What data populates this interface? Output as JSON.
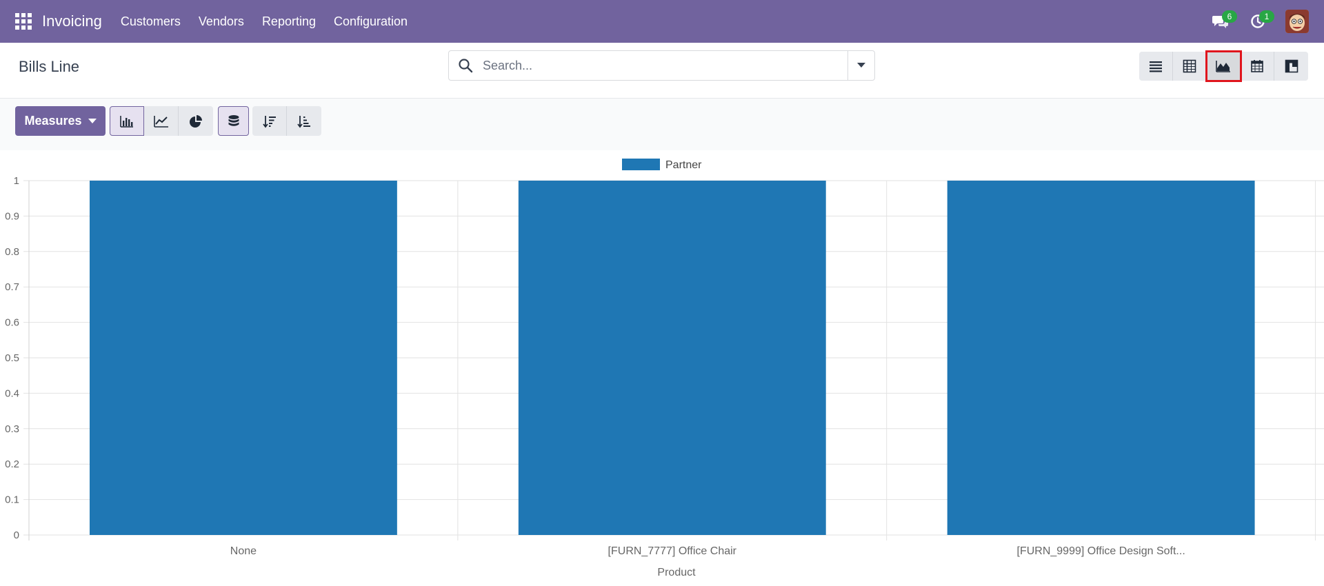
{
  "navbar": {
    "app_name": "Invoicing",
    "menu": [
      "Customers",
      "Vendors",
      "Reporting",
      "Configuration"
    ],
    "messages_count": "6",
    "activities_count": "1",
    "bg_color": "#71639e"
  },
  "control_panel": {
    "title": "Bills Line",
    "search_placeholder": "Search...",
    "views": [
      "list-icon",
      "pivot-icon",
      "graph-icon",
      "calendar-icon",
      "kanban-icon"
    ],
    "active_view": "graph-icon"
  },
  "toolbar": {
    "measures_label": "Measures",
    "chart_types": [
      "bar-chart-icon",
      "line-chart-icon",
      "pie-chart-icon"
    ],
    "active_chart_type": "bar-chart-icon",
    "stacked_icon": "stacked-icon",
    "sort_icons": [
      "sort-descending-icon",
      "sort-ascending-icon"
    ]
  },
  "chart_data": {
    "type": "bar",
    "categories": [
      "None",
      "[FURN_7777] Office Chair",
      "[FURN_9999] Office Design Soft..."
    ],
    "series": [
      {
        "name": "Partner",
        "values": [
          1,
          1,
          1
        ],
        "color": "#1f77b4"
      }
    ],
    "xlabel": "Product",
    "ylabel": "",
    "ylim": [
      0,
      1
    ],
    "yticks": [
      "0",
      "0.1",
      "0.2",
      "0.3",
      "0.4",
      "0.5",
      "0.6",
      "0.7",
      "0.8",
      "0.9",
      "1"
    ],
    "grid": true,
    "legend_position": "top-center"
  }
}
